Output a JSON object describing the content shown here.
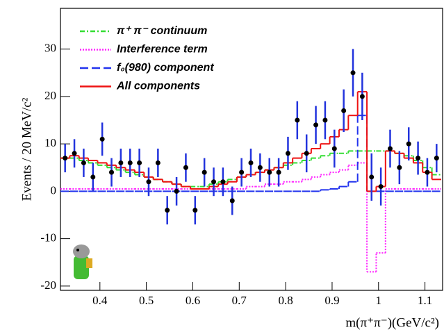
{
  "chart_data": {
    "type": "errorbar",
    "y_label": "Events / 20 MeV/c²",
    "x_label": "m(π⁺π⁻)(GeV/c²)",
    "xlim": [
      0.315,
      1.138
    ],
    "ylim": [
      -20.9,
      38.6
    ],
    "xticks": [
      0.4,
      0.5,
      0.6,
      0.7,
      0.8,
      0.9,
      1,
      1.1
    ],
    "yticks": [
      -20,
      -10,
      0,
      10,
      20,
      30
    ],
    "bin_width": 0.02,
    "x": [
      0.325,
      0.345,
      0.365,
      0.385,
      0.405,
      0.425,
      0.445,
      0.465,
      0.485,
      0.505,
      0.525,
      0.545,
      0.565,
      0.585,
      0.605,
      0.625,
      0.645,
      0.665,
      0.685,
      0.705,
      0.725,
      0.745,
      0.765,
      0.785,
      0.805,
      0.825,
      0.845,
      0.865,
      0.885,
      0.905,
      0.925,
      0.945,
      0.965,
      0.985,
      1.005,
      1.025,
      1.045,
      1.065,
      1.085,
      1.105,
      1.125
    ],
    "points": {
      "color": "#000000",
      "error_color": "#2233dd",
      "values": [
        7,
        8,
        6,
        3,
        11,
        4,
        6,
        6,
        6,
        2,
        6,
        -4,
        0,
        5,
        -4,
        4,
        2,
        2,
        -2,
        4,
        6,
        5,
        4,
        4,
        8,
        15,
        8,
        14,
        15,
        9,
        17,
        25,
        20,
        3,
        1,
        9,
        5,
        10,
        7,
        4,
        7
      ],
      "errors": [
        3,
        3,
        3,
        3,
        3.5,
        3,
        3,
        3,
        3,
        3,
        3,
        3,
        3,
        3,
        3,
        3,
        3,
        3,
        3,
        3,
        3,
        3,
        3,
        3,
        3.5,
        4,
        4,
        4,
        4,
        4,
        4.5,
        5,
        5,
        5,
        4,
        4,
        3.5,
        3.5,
        3.5,
        3,
        3
      ]
    },
    "series": [
      {
        "name": "π⁺ π⁻ continuum",
        "color": "#33dd33",
        "dash": "7 3 2 3",
        "values": [
          7,
          7,
          6.5,
          6,
          5.5,
          5,
          4.5,
          4,
          3.5,
          3,
          2.5,
          2,
          1.5,
          1,
          1,
          1,
          1.5,
          2,
          2.5,
          3,
          3.5,
          4,
          4.5,
          5,
          5.5,
          6,
          6.5,
          7,
          7.5,
          8,
          8,
          8.5,
          8.5,
          8.5,
          8.5,
          8.5,
          8,
          7.5,
          6.5,
          5,
          3.5
        ]
      },
      {
        "name": "Interference term",
        "color": "#ff22ff",
        "dash": "2 2",
        "values": [
          0.5,
          0.5,
          0.5,
          0.5,
          0.5,
          0.5,
          0.5,
          0.5,
          0.5,
          0.5,
          0.5,
          0.5,
          0.5,
          0.5,
          0.5,
          0.5,
          0.5,
          0.5,
          0.5,
          0.5,
          1,
          1,
          1.5,
          1.5,
          2,
          2,
          2.5,
          3,
          3.5,
          4,
          4.5,
          5.5,
          6,
          -17,
          -13,
          0.5,
          0.5,
          0.5,
          0.5,
          0.5,
          0.5
        ]
      },
      {
        "name": "f₀(980) component",
        "color": "#2233ee",
        "dash": "12 5",
        "values": [
          0,
          0,
          0,
          0,
          0,
          0,
          0,
          0,
          0,
          0,
          0,
          0,
          0,
          0,
          0,
          0,
          0,
          0,
          0,
          0,
          0,
          0,
          0,
          0,
          0,
          0,
          0,
          0,
          0.3,
          0.5,
          1,
          2,
          16,
          0,
          0,
          0,
          0,
          0,
          0,
          0,
          0
        ]
      },
      {
        "name": "All components",
        "color": "#ee1111",
        "dash": "",
        "values": [
          7,
          7.5,
          7,
          6.5,
          6,
          5.5,
          5,
          4.5,
          4,
          3,
          2.5,
          2,
          1.5,
          1,
          0.5,
          0.5,
          1,
          1.5,
          2,
          3,
          3.5,
          4,
          4.5,
          5,
          6,
          7,
          8,
          9,
          10,
          11.5,
          13,
          16,
          21,
          0,
          1,
          8.5,
          8,
          7,
          6,
          4,
          2.5
        ]
      }
    ]
  }
}
